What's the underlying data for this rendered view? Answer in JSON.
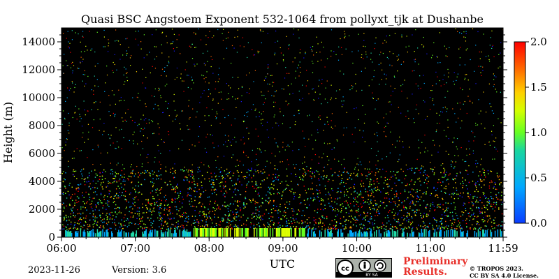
{
  "chart_data": {
    "type": "heatmap",
    "title": "Quasi BSC Angstoem Exponent 532-1064 from pollyxt_tjk at Dushanbe",
    "xlabel": "UTC",
    "ylabel": "Height (m)",
    "x_ticks": [
      "06:00",
      "07:00",
      "08:00",
      "09:00",
      "10:00",
      "11:00",
      "11:59"
    ],
    "y_ticks": [
      "0",
      "2000",
      "4000",
      "6000",
      "8000",
      "10000",
      "12000",
      "14000"
    ],
    "xlim_hours": [
      6.0,
      11.983
    ],
    "ylim": [
      0,
      15000
    ],
    "background": "#000000",
    "colorbar": {
      "ticks": [
        "0.0",
        "0.5",
        "1.0",
        "1.5",
        "2.0"
      ],
      "range": [
        0.0,
        2.0
      ],
      "colors": [
        "#1a1aff",
        "#00aaff",
        "#22ddaa",
        "#66ff22",
        "#ddff00",
        "#ffcc00",
        "#ff6600",
        "#ff0000"
      ]
    },
    "layers": [
      {
        "height_range": [
          0,
          600
        ],
        "note": "dense low-level signal",
        "dominant_value": 0.8
      },
      {
        "height_range": [
          600,
          5000
        ],
        "note": "scattered noisy signal",
        "dominant_value": 1.0
      },
      {
        "height_range": [
          5000,
          15000
        ],
        "note": "sparse noise",
        "dominant_value": 1.0
      }
    ]
  },
  "footer": {
    "date": "2023-11-26",
    "version": "Version: 3.6",
    "preliminary_line1": "Preliminary",
    "preliminary_line2": "Results.",
    "copyright_line1": "© TROPOS 2023.",
    "copyright_line2": "CC BY SA 4.0 License.",
    "license_badge_text": "BY  SA"
  },
  "icons": {
    "license": "creative-commons-by-sa-icon"
  }
}
